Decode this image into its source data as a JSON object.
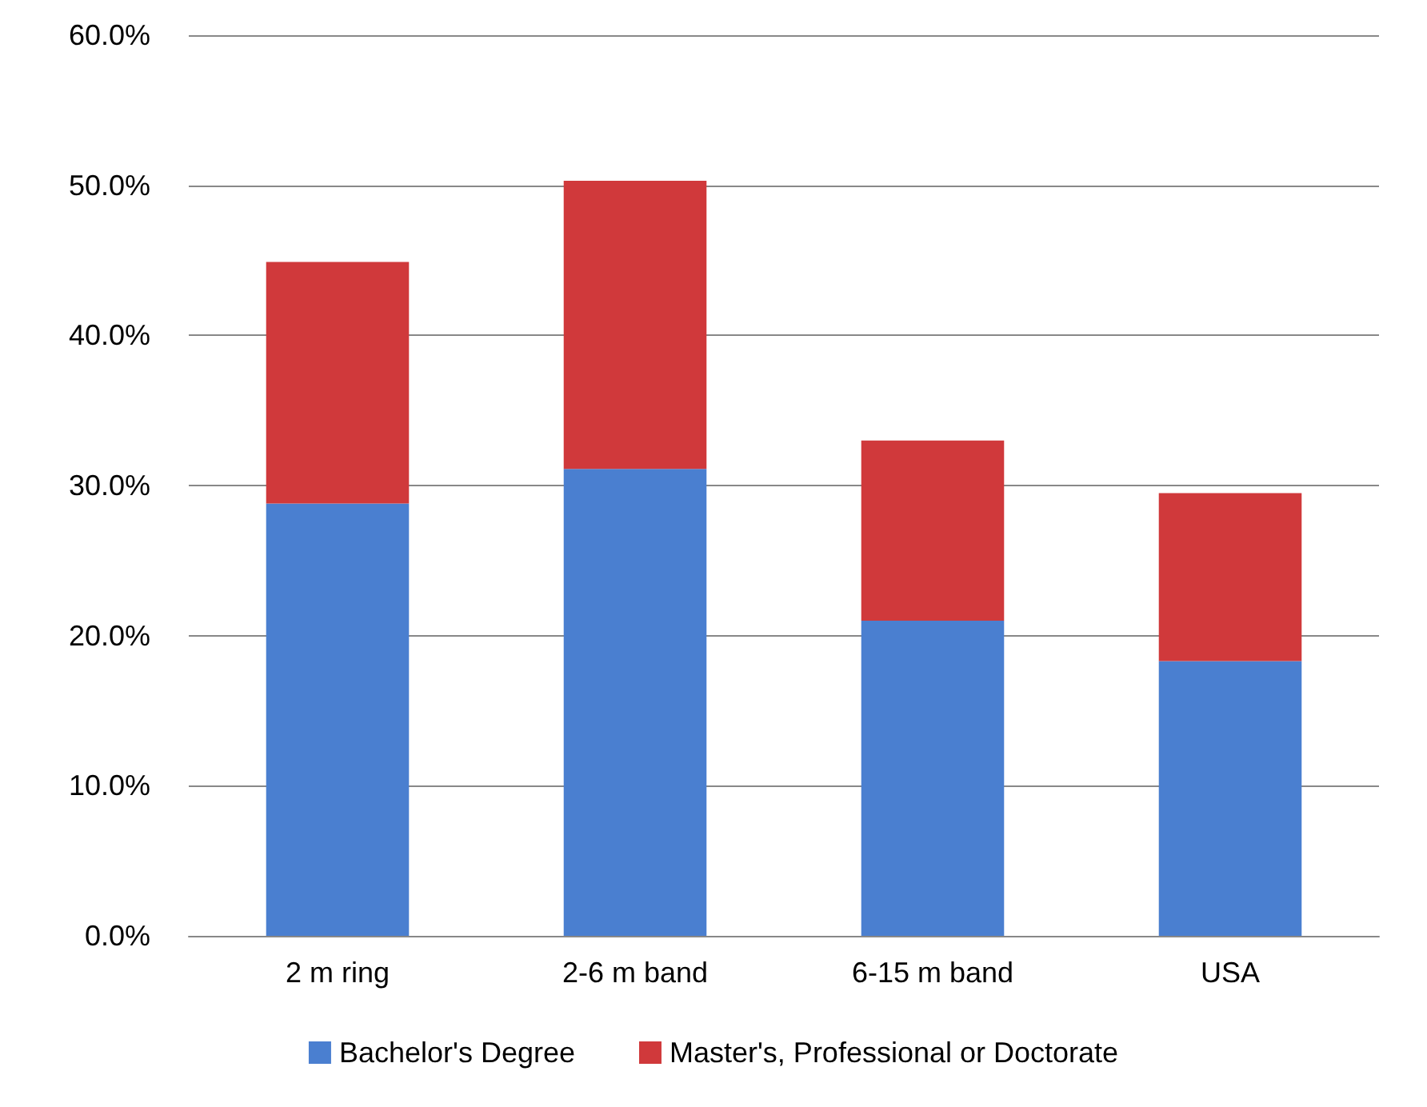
{
  "chart_data": {
    "type": "bar",
    "stacked": true,
    "categories": [
      "2 m ring",
      "2-6 m band",
      "6-15 m band",
      "USA"
    ],
    "series": [
      {
        "name": "Bachelor's Degree",
        "color": "#4a7fd0",
        "values": [
          28.8,
          31.1,
          21.0,
          18.3
        ]
      },
      {
        "name": "Master's, Professional or Doctorate",
        "color": "#d0393b",
        "values": [
          16.1,
          19.2,
          12.0,
          11.2
        ]
      }
    ],
    "ylim": [
      0,
      60
    ],
    "yticks": [
      {
        "value": 0,
        "label": "0.0%"
      },
      {
        "value": 10,
        "label": "10.0%"
      },
      {
        "value": 20,
        "label": "20.0%"
      },
      {
        "value": 30,
        "label": "30.0%"
      },
      {
        "value": 40,
        "label": "40.0%"
      },
      {
        "value": 50,
        "label": "50.0%"
      },
      {
        "value": 60,
        "label": "60.0%"
      }
    ],
    "grid": "y",
    "legend": "bottom"
  }
}
